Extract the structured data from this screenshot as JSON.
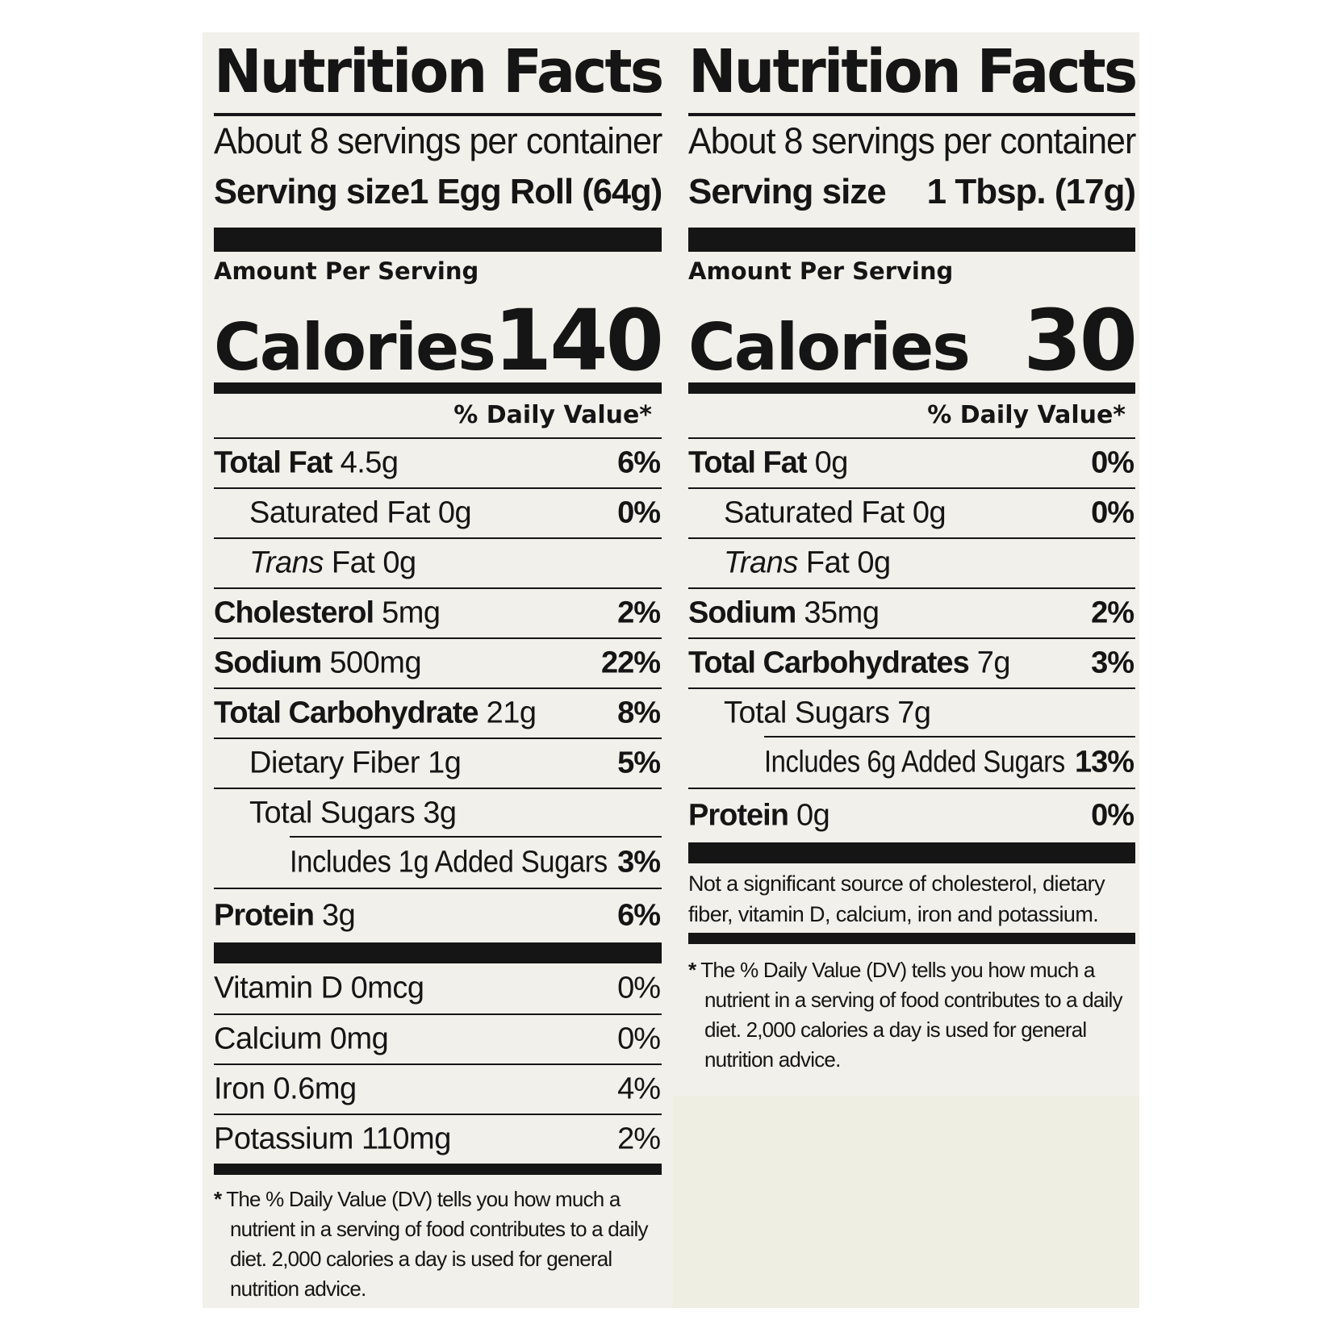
{
  "labels": {
    "left": {
      "title": "Nutrition Facts",
      "servings_per_container": "About 8 servings per container",
      "serving_size_label": "Serving size",
      "serving_size_value": "1 Egg Roll (64g)",
      "amount_per_serving": "Amount Per Serving",
      "calories_label": "Calories",
      "calories_value": "140",
      "daily_value_header": "% Daily Value*",
      "nutrients": [
        {
          "name": "Total Fat",
          "amount": "4.5g",
          "dv": "6%"
        },
        {
          "name": "Saturated Fat",
          "amount": "0g",
          "dv": "0%"
        },
        {
          "name_italic": "Trans",
          "name_rest": "Fat",
          "amount": "0g",
          "dv": ""
        },
        {
          "name": "Cholesterol",
          "amount": "5mg",
          "dv": "2%"
        },
        {
          "name": "Sodium",
          "amount": "500mg",
          "dv": "22%"
        },
        {
          "name": "Total Carbohydrate",
          "amount": "21g",
          "dv": "8%"
        },
        {
          "name": "Dietary Fiber",
          "amount": "1g",
          "dv": "5%"
        },
        {
          "name": "Total Sugars",
          "amount": "3g",
          "dv": ""
        },
        {
          "name": "Includes 1g Added Sugars",
          "amount": "",
          "dv": "3%"
        },
        {
          "name": "Protein",
          "amount": "3g",
          "dv": "6%"
        }
      ],
      "vitamins": [
        {
          "name": "Vitamin D",
          "amount": "0mcg",
          "dv": "0%"
        },
        {
          "name": "Calcium",
          "amount": "0mg",
          "dv": "0%"
        },
        {
          "name": "Iron",
          "amount": "0.6mg",
          "dv": "4%"
        },
        {
          "name": "Potassium",
          "amount": "110mg",
          "dv": "2%"
        }
      ],
      "footnote_star": "*",
      "footnote": "The % Daily Value (DV) tells you how much a nutrient in a serving of food contributes to a daily diet. 2,000 calories a day is used for general nutrition advice."
    },
    "right": {
      "title": "Nutrition Facts",
      "servings_per_container": "About 8 servings per container",
      "serving_size_label": "Serving size",
      "serving_size_value": "1 Tbsp. (17g)",
      "amount_per_serving": "Amount Per Serving",
      "calories_label": "Calories",
      "calories_value": "30",
      "daily_value_header": "% Daily Value*",
      "nutrients": [
        {
          "name": "Total Fat",
          "amount": "0g",
          "dv": "0%"
        },
        {
          "name": "Saturated Fat",
          "amount": "0g",
          "dv": "0%"
        },
        {
          "name_italic": "Trans",
          "name_rest": "Fat",
          "amount": "0g",
          "dv": ""
        },
        {
          "name": "Sodium",
          "amount": "35mg",
          "dv": "2%"
        },
        {
          "name": "Total Carbohydrates",
          "amount": "7g",
          "dv": "3%"
        },
        {
          "name": "Total Sugars",
          "amount": "7g",
          "dv": ""
        },
        {
          "name": "Includes 6g Added Sugars",
          "amount": "",
          "dv": "13%"
        },
        {
          "name": "Protein",
          "amount": "0g",
          "dv": "0%"
        }
      ],
      "not_significant": "Not a significant source of cholesterol, dietary fiber, vitamin D, calcium, iron and potassium.",
      "footnote_star": "*",
      "footnote": "The % Daily Value (DV) tells you how much a nutrient in a serving of food contributes to a daily diet. 2,000 calories a day is used for general nutrition advice."
    }
  }
}
